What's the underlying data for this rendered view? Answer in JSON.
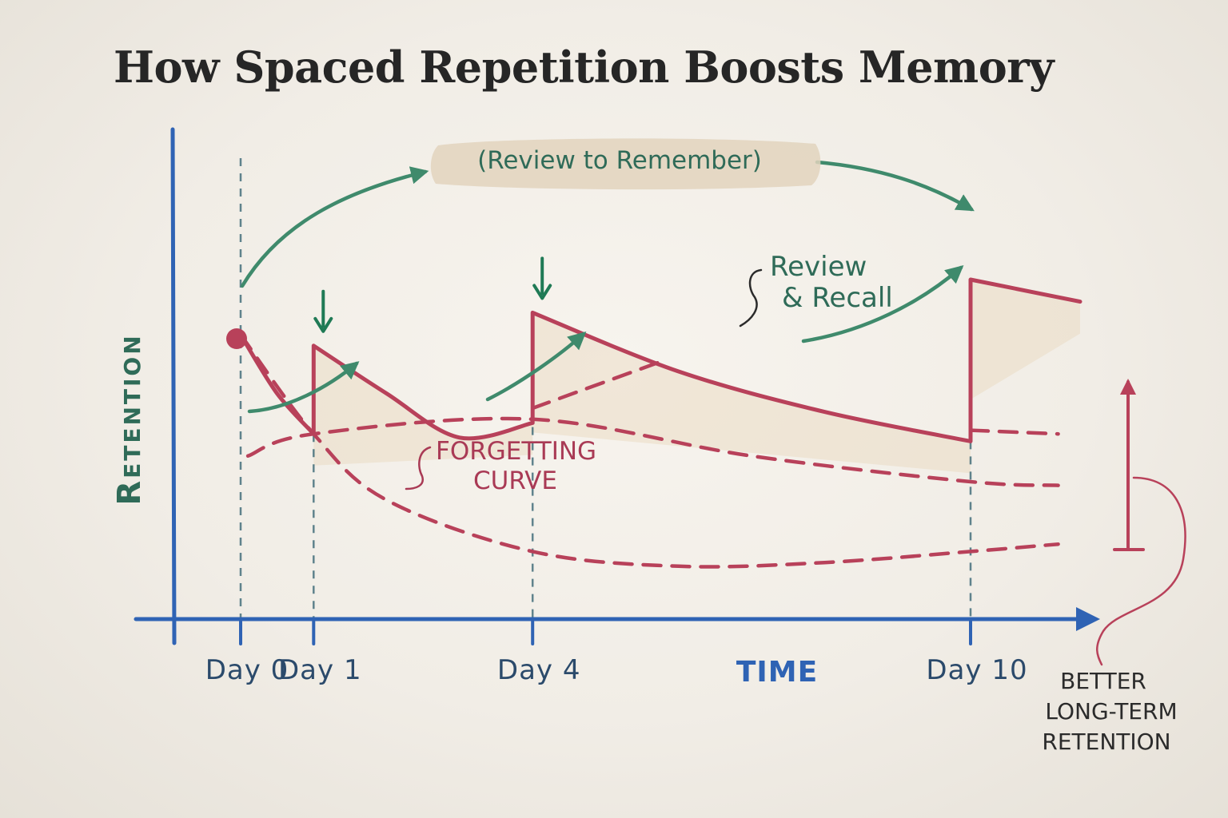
{
  "colors": {
    "axis": "#2f63b4",
    "curve": "#b8415a",
    "arrow": "#3f8a6c",
    "review_arrow": "#1f7a55",
    "label_green": "#2f6b58",
    "label_red": "#a93a55",
    "label_dark": "#2b2b2b",
    "highlight": "#e2d4bd",
    "shading": "#e9d6bc"
  },
  "chart_data": {
    "type": "line",
    "title": "How Spaced Repetition Boosts Memory",
    "ylabel": "Retention",
    "xlabel": "TIME",
    "x_ticks": [
      {
        "x": 0,
        "label": "Day 0"
      },
      {
        "x": 1,
        "label": "Day 1"
      },
      {
        "x": 4,
        "label": "Day 4"
      },
      {
        "x": 10,
        "label": "Day 10"
      }
    ],
    "xlim": [
      -0.65,
      11.7
    ],
    "ylim": [
      0,
      100
    ],
    "series": [
      {
        "kind": "solid",
        "points": [
          [
            0,
            65
          ],
          [
            0.5,
            49
          ],
          [
            1,
            38
          ],
          [
            1,
            62
          ],
          [
            2,
            49
          ],
          [
            3,
            37
          ],
          [
            4,
            41
          ],
          [
            4,
            71
          ],
          [
            6,
            55
          ],
          [
            8,
            44
          ],
          [
            10,
            36
          ],
          [
            10,
            80
          ],
          [
            11,
            76
          ],
          [
            11.5,
            74
          ]
        ]
      },
      {
        "kind": "dashed",
        "points": [
          [
            0,
            65
          ],
          [
            1,
            38
          ],
          [
            2,
            20
          ],
          [
            4,
            6
          ],
          [
            6,
            2
          ],
          [
            8,
            3
          ],
          [
            10,
            6
          ],
          [
            11.2,
            8
          ]
        ]
      },
      {
        "kind": "dashed",
        "points": [
          [
            0.1,
            32
          ],
          [
            1,
            38
          ],
          [
            4,
            42
          ],
          [
            7,
            32
          ],
          [
            10,
            25
          ],
          [
            11.2,
            24
          ]
        ]
      },
      {
        "kind": "dashed",
        "points": [
          [
            4,
            45
          ],
          [
            5.8,
            58
          ]
        ]
      },
      {
        "kind": "dashed",
        "points": [
          [
            10,
            39
          ],
          [
            11.2,
            38
          ]
        ]
      }
    ],
    "review_markers": [
      1,
      4
    ],
    "annotations": [
      {
        "text": "(Review to Remember)"
      },
      {
        "text": "Review",
        "text2": "& Recall"
      },
      {
        "text": "Forgetting",
        "text2": "Curve"
      },
      {
        "text": "Better",
        "text2": "Long-Term",
        "text3": "Retention"
      }
    ]
  }
}
